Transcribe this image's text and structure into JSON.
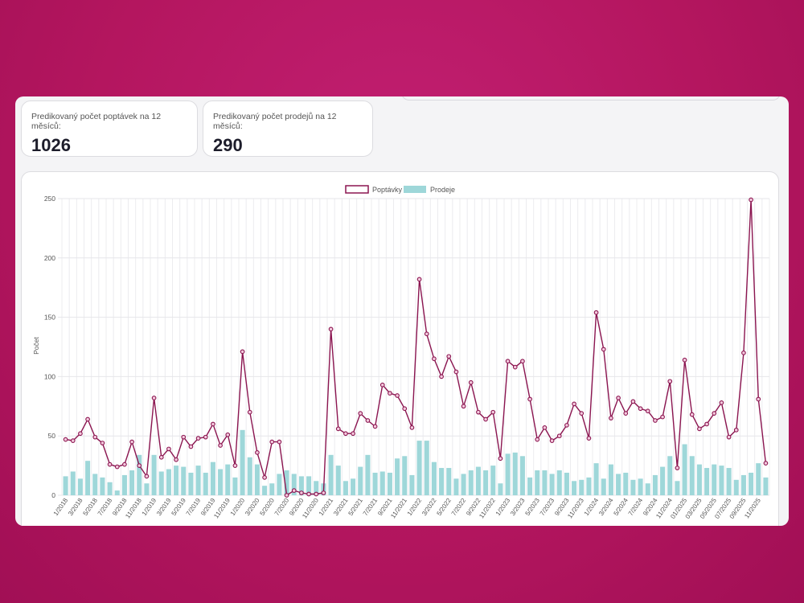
{
  "cards": {
    "inquiries": {
      "label": "Predikovaný počet poptávek na 12 měsíců:",
      "value": "1026"
    },
    "sales": {
      "label": "Predikovaný počet prodejů na 12 měsíců:",
      "value": "290"
    }
  },
  "chart_data": {
    "type": "bar+line",
    "ylabel": "Počet",
    "ylim": [
      0,
      250
    ],
    "yticks": [
      0,
      50,
      100,
      150,
      200,
      250
    ],
    "grid": true,
    "legend": "top-center",
    "x": [
      "1/2018",
      "2/2018",
      "3/2018",
      "4/2018",
      "5/2018",
      "6/2018",
      "7/2018",
      "8/2018",
      "9/2018",
      "10/2018",
      "11/2018",
      "12/2018",
      "1/2019",
      "2/2019",
      "3/2019",
      "4/2019",
      "5/2019",
      "6/2019",
      "7/2019",
      "8/2019",
      "9/2019",
      "10/2019",
      "11/2019",
      "12/2019",
      "1/2020",
      "2/2020",
      "3/2020",
      "4/2020",
      "5/2020",
      "6/2020",
      "7/2020",
      "8/2020",
      "9/2020",
      "10/2020",
      "11/2020",
      "12/2020",
      "1/2021",
      "2/2021",
      "3/2021",
      "4/2021",
      "5/2021",
      "6/2021",
      "7/2021",
      "8/2021",
      "9/2021",
      "10/2021",
      "11/2021",
      "12/2021",
      "1/2022",
      "2/2022",
      "3/2022",
      "4/2022",
      "5/2022",
      "6/2022",
      "7/2022",
      "8/2022",
      "9/2022",
      "10/2022",
      "11/2022",
      "12/2022",
      "1/2023",
      "2/2023",
      "3/2023",
      "4/2023",
      "5/2023",
      "6/2023",
      "7/2023",
      "8/2023",
      "9/2023",
      "10/2023",
      "11/2023",
      "12/2023",
      "1/2024",
      "2/2024",
      "3/2024",
      "4/2024",
      "5/2024",
      "6/2024",
      "7/2024",
      "8/2024",
      "9/2024",
      "10/2024",
      "11/2024",
      "12/2024",
      "01/2025",
      "02/2025",
      "03/2025",
      "04/2025",
      "05/2025",
      "06/2025",
      "07/2025",
      "08/2025",
      "09/2025",
      "10/2025",
      "11/2025",
      "12/2025"
    ],
    "series": [
      {
        "name": "Poptávky",
        "type": "line",
        "color": "#8b1550",
        "values": [
          47,
          46,
          52,
          64,
          49,
          44,
          26,
          24,
          26,
          45,
          25,
          16,
          82,
          32,
          39,
          30,
          49,
          41,
          48,
          49,
          60,
          42,
          51,
          25,
          121,
          70,
          36,
          15,
          45,
          45,
          0,
          4,
          2,
          1,
          1,
          2,
          140,
          56,
          52,
          52,
          69,
          63,
          58,
          93,
          86,
          84,
          73,
          57,
          182,
          136,
          115,
          100,
          117,
          104,
          75,
          95,
          70,
          64,
          70,
          31,
          113,
          108,
          113,
          81,
          47,
          57,
          46,
          50,
          59,
          77,
          69,
          48,
          154,
          123,
          65,
          82,
          69,
          79,
          73,
          71,
          63,
          66,
          96,
          23,
          114,
          68,
          56,
          60,
          69,
          78,
          49,
          55,
          120,
          249,
          81,
          27
        ]
      },
      {
        "name": "Prodeje",
        "type": "bar",
        "color": "#9ed7d9",
        "values": [
          16,
          20,
          14,
          29,
          18,
          15,
          11,
          4,
          17,
          21,
          34,
          10,
          34,
          20,
          22,
          25,
          24,
          19,
          25,
          19,
          28,
          22,
          26,
          15,
          55,
          32,
          26,
          8,
          10,
          18,
          21,
          18,
          16,
          16,
          12,
          10,
          34,
          25,
          12,
          14,
          24,
          34,
          19,
          20,
          19,
          31,
          33,
          17,
          46,
          46,
          28,
          23,
          23,
          14,
          18,
          21,
          24,
          21,
          25,
          10,
          35,
          36,
          33,
          15,
          21,
          21,
          18,
          21,
          19,
          12,
          13,
          15,
          27,
          14,
          26,
          18,
          19,
          13,
          14,
          10,
          17,
          24,
          33,
          12,
          43,
          33,
          26,
          23,
          26,
          25,
          23,
          13,
          17,
          19,
          27,
          15
        ]
      }
    ]
  }
}
